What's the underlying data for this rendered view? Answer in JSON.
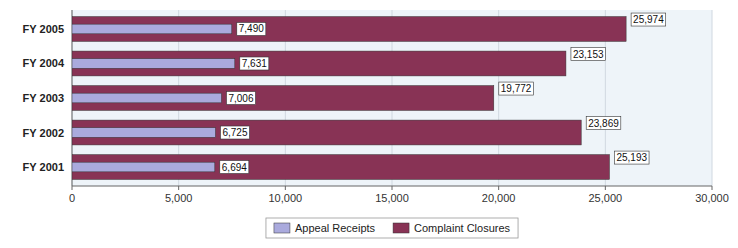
{
  "chart_data": {
    "type": "bar",
    "orientation": "horizontal",
    "categories": [
      "FY 2001",
      "FY 2002",
      "FY 2003",
      "FY 2004",
      "FY 2005"
    ],
    "series": [
      {
        "name": "Appeal Receipts",
        "color": "#aaaadd",
        "values": [
          6694,
          6725,
          7006,
          7631,
          7490
        ],
        "value_labels": [
          "6,694",
          "6,725",
          "7,006",
          "7,631",
          "7,490"
        ]
      },
      {
        "name": "Complaint Closures",
        "color": "#883355",
        "values": [
          25193,
          23869,
          19772,
          23153,
          25974
        ],
        "value_labels": [
          "25,193",
          "23,869",
          "19,772",
          "23,153",
          "25,974"
        ]
      }
    ],
    "xlim": [
      0,
      30000
    ],
    "xticks": [
      0,
      {
        "value": 5000,
        "label": "5,000"
      },
      {
        "value": 10000,
        "label": "10,000"
      },
      {
        "value": 15000,
        "label": "15,000"
      },
      {
        "value": 20000,
        "label": "20,000"
      },
      {
        "value": 25000,
        "label": "25,000"
      },
      {
        "value": 30000,
        "label": "30,000"
      }
    ],
    "grid": true,
    "legend": "bottom",
    "data_labels": true
  }
}
